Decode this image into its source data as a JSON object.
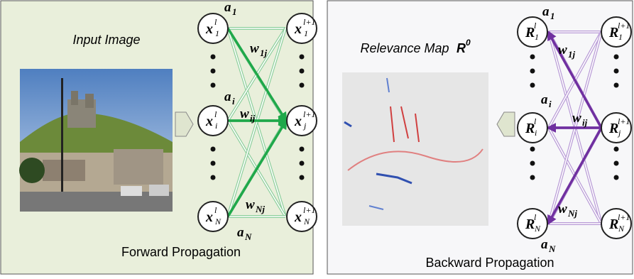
{
  "forward": {
    "title": "Input Image",
    "caption": "Forward Propagation",
    "left_nodes": [
      {
        "base": "x",
        "sup": "l",
        "sub": "1"
      },
      {
        "base": "x",
        "sup": "l",
        "sub": "i"
      },
      {
        "base": "x",
        "sup": "l",
        "sub": "N"
      }
    ],
    "right_nodes": [
      {
        "base": "x",
        "sup": "l+1",
        "sub": "1"
      },
      {
        "base": "x",
        "sup": "l+1",
        "sub": "j"
      },
      {
        "base": "x",
        "sup": "l+1",
        "sub": "N"
      }
    ],
    "activations": [
      {
        "base": "a",
        "sub": "1"
      },
      {
        "base": "a",
        "sub": "i"
      },
      {
        "base": "a",
        "sub": "N"
      }
    ],
    "weights": [
      {
        "base": "w",
        "sub": "1j"
      },
      {
        "base": "w",
        "sub": "ij"
      },
      {
        "base": "w",
        "sub": "Nj"
      }
    ]
  },
  "backward": {
    "title": "Relevance Map",
    "title_symbol": {
      "base": "R",
      "sup": "0"
    },
    "caption": "Backward Propagation",
    "left_nodes": [
      {
        "base": "R",
        "sup": "l",
        "sub": "1"
      },
      {
        "base": "R",
        "sup": "l",
        "sub": "i"
      },
      {
        "base": "R",
        "sup": "l",
        "sub": "N"
      }
    ],
    "right_nodes": [
      {
        "base": "R",
        "sup": "l+1",
        "sub": "1"
      },
      {
        "base": "R",
        "sup": "l+1",
        "sub": "j"
      },
      {
        "base": "R",
        "sup": "l+1",
        "sub": "N"
      }
    ],
    "activations": [
      {
        "base": "a",
        "sub": "1"
      },
      {
        "base": "a",
        "sub": "i"
      },
      {
        "base": "a",
        "sub": "N"
      }
    ],
    "weights": [
      {
        "base": "w",
        "sub": "1j"
      },
      {
        "base": "w",
        "sub": "ij"
      },
      {
        "base": "w",
        "sub": "Nj"
      }
    ]
  }
}
